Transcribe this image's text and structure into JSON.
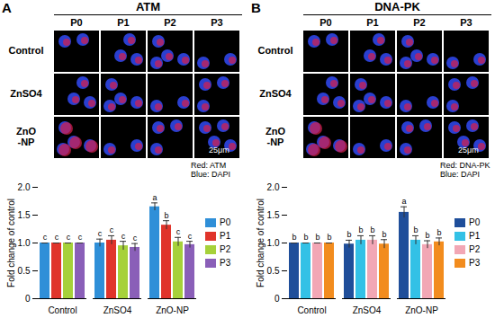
{
  "chart_data": [
    {
      "type": "bar",
      "panel": "A",
      "title": "ATM",
      "image_columns": [
        "P0",
        "P1",
        "P2",
        "P3"
      ],
      "image_rows": [
        "Control",
        "ZnSO4",
        "ZnO\n-NP"
      ],
      "image_legend": [
        "Red: ATM",
        "Blue: DAPI"
      ],
      "scale_bar": "25μm",
      "categories": [
        "Control",
        "ZnSO4",
        "ZnO-NP"
      ],
      "series": [
        {
          "name": "P0",
          "color": "#2f8fd8",
          "values": [
            1.0,
            1.0,
            1.65
          ],
          "errors": [
            0.0,
            0.07,
            0.07
          ],
          "letters": [
            "c",
            "c",
            "a"
          ]
        },
        {
          "name": "P1",
          "color": "#e0342b",
          "values": [
            1.0,
            1.05,
            1.32
          ],
          "errors": [
            0.0,
            0.08,
            0.08
          ],
          "letters": [
            "c",
            "c",
            "b"
          ]
        },
        {
          "name": "P2",
          "color": "#a6d13a",
          "values": [
            1.0,
            0.95,
            1.02
          ],
          "errors": [
            0.0,
            0.08,
            0.08
          ],
          "letters": [
            "c",
            "c",
            "c"
          ]
        },
        {
          "name": "P3",
          "color": "#8a5fb8",
          "values": [
            1.0,
            0.92,
            0.97
          ],
          "errors": [
            0.0,
            0.07,
            0.06
          ],
          "letters": [
            "c",
            "c",
            "c"
          ]
        }
      ],
      "y_label": "Fold change of control",
      "ylim": [
        0,
        2.0
      ],
      "yticks": [
        0,
        {
          "value": 0.5,
          "label": "0.5"
        },
        {
          "value": 1,
          "label": "1.0"
        },
        {
          "value": 1.5,
          "label": "1.5"
        },
        {
          "value": 2,
          "label": "2.0"
        }
      ],
      "legend": "right"
    },
    {
      "type": "bar",
      "panel": "B",
      "title": "DNA-PK",
      "image_columns": [
        "P0",
        "P1",
        "P2",
        "P3"
      ],
      "image_rows": [
        "Control",
        "ZnSO4",
        "ZnO\n-NP"
      ],
      "image_legend": [
        "Red: DNA-PK",
        "Blue: DAPI"
      ],
      "scale_bar": "25μm",
      "categories": [
        "Control",
        "ZnSO4",
        "ZnO-NP"
      ],
      "series": [
        {
          "name": "P0",
          "color": "#1f4e9a",
          "values": [
            1.0,
            0.98,
            1.55
          ],
          "errors": [
            0.0,
            0.07,
            0.1
          ],
          "letters": [
            "b",
            "b",
            "a"
          ]
        },
        {
          "name": "P1",
          "color": "#33c1e6",
          "values": [
            1.0,
            1.05,
            1.05
          ],
          "errors": [
            0.0,
            0.08,
            0.08
          ],
          "letters": [
            "b",
            "b",
            "b"
          ]
        },
        {
          "name": "P2",
          "color": "#f2a7b5",
          "values": [
            1.0,
            1.05,
            0.97
          ],
          "errors": [
            0.0,
            0.08,
            0.07
          ],
          "letters": [
            "b",
            "b",
            "b"
          ]
        },
        {
          "name": "P3",
          "color": "#f28c1e",
          "values": [
            1.0,
            0.98,
            1.02
          ],
          "errors": [
            0.0,
            0.08,
            0.07
          ],
          "letters": [
            "b",
            "b",
            "b"
          ]
        }
      ],
      "y_label": "Fold change of control",
      "ylim": [
        0,
        2.0
      ],
      "yticks": [
        0,
        {
          "value": 0.5,
          "label": "0.5"
        },
        {
          "value": 1,
          "label": "1.0"
        },
        {
          "value": 1.5,
          "label": "1.5"
        },
        {
          "value": 2,
          "label": "2.0"
        }
      ],
      "legend": "right"
    }
  ]
}
